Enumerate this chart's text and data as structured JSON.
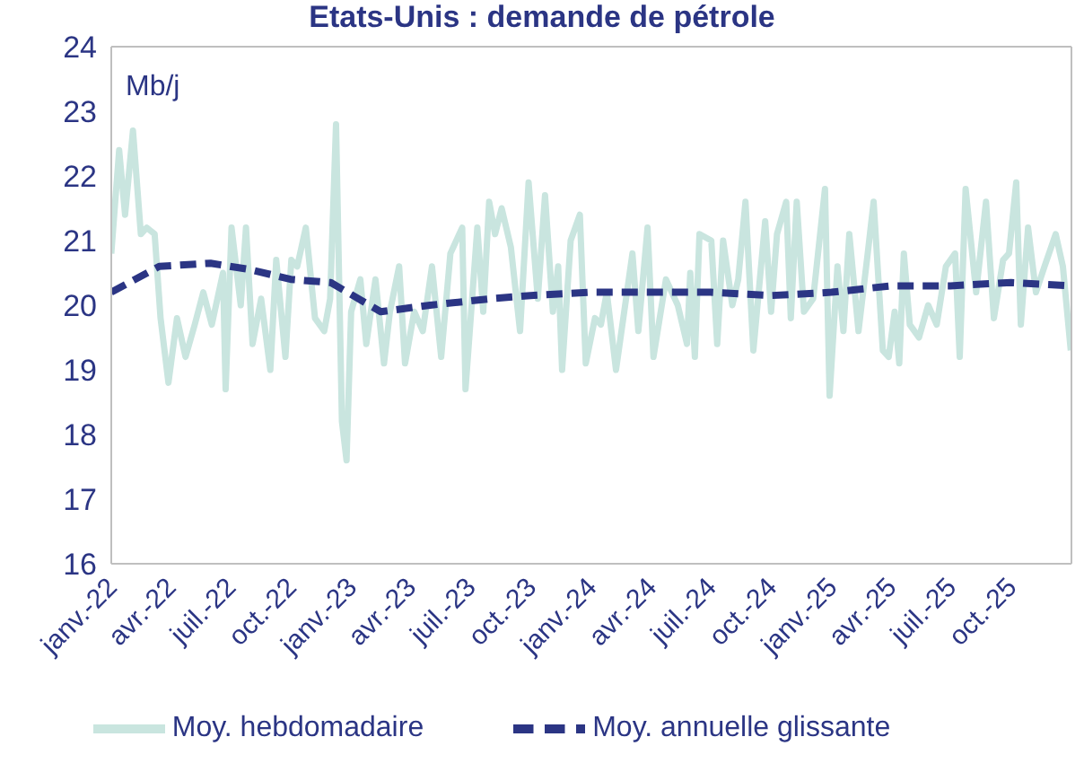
{
  "chart_data": {
    "type": "line",
    "title": "Etats-Unis : demande de pétrole",
    "ylabel": "Mb/j",
    "xlim": [
      "2022-01-01",
      "2026-01-01"
    ],
    "xticks": [
      {
        "value": "2022-01-01",
        "label": "janv.-22"
      },
      {
        "value": "2022-04-01",
        "label": "avr.-22"
      },
      {
        "value": "2022-07-01",
        "label": "juil.-22"
      },
      {
        "value": "2022-10-01",
        "label": "oct.-22"
      },
      {
        "value": "2023-01-01",
        "label": "janv.-23"
      },
      {
        "value": "2023-04-01",
        "label": "avr.-23"
      },
      {
        "value": "2023-07-01",
        "label": "juil.-23"
      },
      {
        "value": "2023-10-01",
        "label": "oct.-23"
      },
      {
        "value": "2024-01-01",
        "label": "janv.-24"
      },
      {
        "value": "2024-04-01",
        "label": "avr.-24"
      },
      {
        "value": "2024-07-01",
        "label": "juil.-24"
      },
      {
        "value": "2024-10-01",
        "label": "oct.-24"
      },
      {
        "value": "2025-01-01",
        "label": "janv.-25"
      },
      {
        "value": "2025-04-01",
        "label": "avr.-25"
      },
      {
        "value": "2025-07-01",
        "label": "juil.-25"
      },
      {
        "value": "2025-10-01",
        "label": "oct.-25"
      }
    ],
    "ylim": [
      16,
      24
    ],
    "yticks": [
      16,
      17,
      18,
      19,
      20,
      21,
      22,
      23,
      24
    ],
    "legend": "bottom",
    "series": [
      {
        "name": "Moy. hebdomadaire",
        "color": "#c9e5df",
        "line_style": "solid",
        "x": [
          "2022-01-01",
          "2022-01-13",
          "2022-01-22",
          "2022-02-03",
          "2022-02-15",
          "2022-02-24",
          "2022-03-08",
          "2022-03-17",
          "2022-03-29",
          "2022-04-11",
          "2022-04-24",
          "2022-05-08",
          "2022-05-21",
          "2022-06-03",
          "2022-06-20",
          "2022-06-24",
          "2022-07-03",
          "2022-07-17",
          "2022-07-25",
          "2022-08-04",
          "2022-08-17",
          "2022-08-31",
          "2022-09-09",
          "2022-09-23",
          "2022-10-02",
          "2022-10-11",
          "2022-10-24",
          "2022-11-07",
          "2022-11-21",
          "2022-11-30",
          "2022-12-09",
          "2022-12-18",
          "2022-12-25",
          "2023-01-01",
          "2023-01-15",
          "2023-01-24",
          "2023-02-07",
          "2023-02-20",
          "2023-03-01",
          "2023-03-15",
          "2023-03-24",
          "2023-04-07",
          "2023-04-20",
          "2023-05-04",
          "2023-05-18",
          "2023-06-01",
          "2023-06-19",
          "2023-06-24",
          "2023-07-12",
          "2023-07-21",
          "2023-07-30",
          "2023-08-08",
          "2023-08-18",
          "2023-09-01",
          "2023-09-15",
          "2023-09-28",
          "2023-10-12",
          "2023-10-23",
          "2023-11-04",
          "2023-11-12",
          "2023-11-18",
          "2023-12-01",
          "2023-12-15",
          "2023-12-24",
          "2024-01-07",
          "2024-01-16",
          "2024-01-25",
          "2024-02-08",
          "2024-03-04",
          "2024-03-13",
          "2024-03-27",
          "2024-04-05",
          "2024-04-24",
          "2024-05-12",
          "2024-05-26",
          "2024-05-31",
          "2024-06-07",
          "2024-06-14",
          "2024-07-02",
          "2024-07-11",
          "2024-07-20",
          "2024-08-03",
          "2024-08-12",
          "2024-08-23",
          "2024-09-04",
          "2024-09-22",
          "2024-10-01",
          "2024-10-10",
          "2024-10-24",
          "2024-10-31",
          "2024-11-09",
          "2024-11-20",
          "2024-12-04",
          "2024-12-22",
          "2024-12-29",
          "2025-01-10",
          "2025-01-19",
          "2025-01-28",
          "2025-02-11",
          "2025-02-25",
          "2025-03-06",
          "2025-03-20",
          "2025-03-29",
          "2025-04-07",
          "2025-04-14",
          "2025-04-21",
          "2025-04-30",
          "2025-05-14",
          "2025-05-28",
          "2025-06-10",
          "2025-06-24",
          "2025-07-08",
          "2025-07-15",
          "2025-07-24",
          "2025-08-09",
          "2025-08-24",
          "2025-09-05",
          "2025-09-19",
          "2025-09-28",
          "2025-10-09",
          "2025-10-16",
          "2025-10-27",
          "2025-11-08",
          "2025-11-21",
          "2025-12-08",
          "2025-12-19",
          "2025-12-31"
        ],
        "values": [
          20.8,
          22.4,
          21.4,
          22.7,
          21.1,
          21.2,
          21.1,
          19.8,
          18.8,
          19.8,
          19.2,
          19.7,
          20.2,
          19.7,
          20.5,
          18.7,
          21.2,
          20.0,
          21.2,
          19.4,
          20.1,
          19.0,
          20.7,
          19.2,
          20.7,
          20.6,
          21.2,
          19.8,
          19.6,
          20.1,
          22.8,
          18.2,
          17.6,
          19.9,
          20.4,
          19.4,
          20.4,
          19.1,
          19.9,
          20.6,
          19.1,
          19.9,
          19.6,
          20.6,
          19.2,
          20.8,
          21.2,
          18.7,
          21.2,
          19.9,
          21.6,
          21.1,
          21.5,
          20.9,
          19.6,
          21.9,
          20.1,
          21.7,
          19.9,
          20.6,
          19.0,
          21.0,
          21.4,
          19.1,
          19.8,
          19.7,
          20.2,
          19.0,
          20.8,
          19.6,
          21.2,
          19.2,
          20.4,
          20.0,
          19.4,
          20.5,
          19.2,
          21.1,
          21.0,
          19.4,
          21.0,
          20.0,
          20.4,
          21.6,
          19.3,
          21.3,
          19.9,
          21.1,
          21.6,
          19.8,
          21.6,
          19.9,
          20.1,
          21.8,
          18.6,
          20.6,
          19.6,
          21.1,
          19.6,
          20.8,
          21.6,
          19.3,
          19.2,
          19.9,
          19.1,
          20.8,
          19.7,
          19.5,
          20.0,
          19.7,
          20.6,
          20.8,
          19.2,
          21.8,
          20.2,
          21.6,
          19.8,
          20.7,
          20.8,
          21.9,
          19.7,
          21.2,
          20.2,
          20.6,
          21.1,
          20.6,
          19.3
        ]
      },
      {
        "name": "Moy. annuelle glissante",
        "color": "#2b3584",
        "line_style": "dashed",
        "x": [
          "2022-01-01",
          "2022-03-15",
          "2022-06-01",
          "2022-08-01",
          "2022-10-01",
          "2022-12-01",
          "2023-02-15",
          "2023-05-01",
          "2023-08-01",
          "2023-10-01",
          "2024-01-01",
          "2024-04-01",
          "2024-07-01",
          "2024-10-01",
          "2025-01-01",
          "2025-04-01",
          "2025-07-01",
          "2025-10-01",
          "2025-12-31"
        ],
        "values": [
          20.2,
          20.6,
          20.65,
          20.55,
          20.4,
          20.35,
          19.9,
          20.0,
          20.1,
          20.15,
          20.2,
          20.2,
          20.2,
          20.15,
          20.2,
          20.3,
          20.3,
          20.35,
          20.3
        ]
      }
    ]
  }
}
